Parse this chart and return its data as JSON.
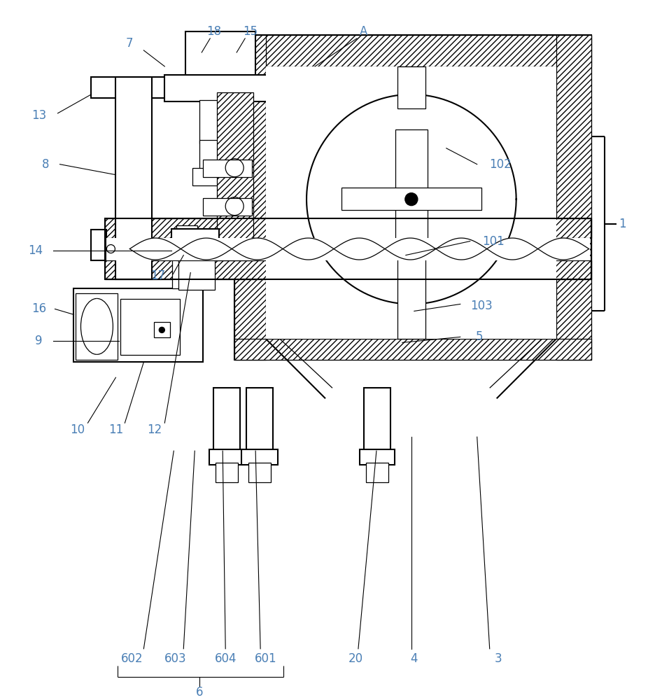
{
  "bg": "#ffffff",
  "lc": "#000000",
  "tc": "#4a7fb5",
  "lw": 1.5,
  "tlw": 0.9,
  "llw": 0.8,
  "figw": 9.46,
  "figh": 10.0,
  "dpi": 100
}
